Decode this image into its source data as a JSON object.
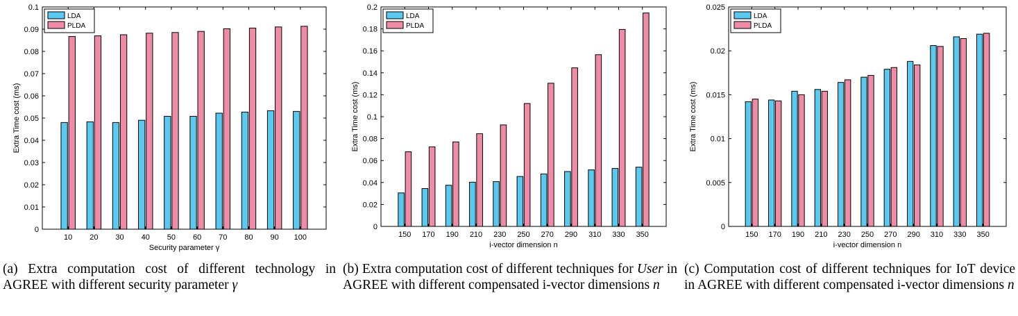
{
  "colors": {
    "lda": "#5BC8EF",
    "plda": "#EE8CA8",
    "axis": "#000000"
  },
  "panels": [
    {
      "id": "a",
      "caption": {
        "tag": "(a)",
        "text": "Extra computation cost of different technology in AGREE with different security parameter ",
        "symbol": "γ"
      }
    },
    {
      "id": "b",
      "caption": {
        "tag": "(b)",
        "before": "Extra computation cost of different techniques for ",
        "italic": "User",
        "after": " in AGREE with different compensated i-vector dimensions ",
        "symbol": "n"
      }
    },
    {
      "id": "c",
      "caption": {
        "tag": "(c)",
        "text": "Computation cost of different techniques for IoT device in AGREE with different compensated i-vector dimensions ",
        "symbol": "n"
      }
    }
  ],
  "chart_data": [
    {
      "type": "bar",
      "categories": [
        "10",
        "20",
        "30",
        "40",
        "50",
        "60",
        "70",
        "80",
        "90",
        "100"
      ],
      "series": [
        {
          "name": "LDA",
          "values": [
            0.048,
            0.0483,
            0.048,
            0.049,
            0.0508,
            0.0508,
            0.0522,
            0.0527,
            0.0533,
            0.053
          ]
        },
        {
          "name": "PLDA",
          "values": [
            0.0867,
            0.087,
            0.0875,
            0.0882,
            0.0885,
            0.089,
            0.0902,
            0.0905,
            0.091,
            0.0913
          ]
        }
      ],
      "xlabel": "Security parameter γ",
      "ylabel": "Extra Time cost (ms)",
      "ylim": [
        0,
        0.1
      ],
      "yticks": [
        "0",
        "0.01",
        "0.02",
        "0.03",
        "0.04",
        "0.05",
        "0.06",
        "0.07",
        "0.08",
        "0.09",
        "0.1"
      ],
      "legend": "top-left",
      "grid": false
    },
    {
      "type": "bar",
      "categories": [
        "150",
        "170",
        "190",
        "210",
        "230",
        "250",
        "270",
        "290",
        "310",
        "330",
        "350"
      ],
      "series": [
        {
          "name": "LDA",
          "values": [
            0.0305,
            0.0345,
            0.0375,
            0.0403,
            0.0408,
            0.0455,
            0.0478,
            0.05,
            0.0515,
            0.0528,
            0.054
          ]
        },
        {
          "name": "PLDA",
          "values": [
            0.068,
            0.0725,
            0.077,
            0.0845,
            0.0925,
            0.112,
            0.1305,
            0.1445,
            0.1565,
            0.1795,
            0.1945
          ]
        }
      ],
      "xlabel": "i-vector dimension n",
      "ylabel": "Extra Time cost (ms)",
      "ylim": [
        0,
        0.2
      ],
      "yticks": [
        "0",
        "0.02",
        "0.04",
        "0.06",
        "0.08",
        "0.1",
        "0.12",
        "0.14",
        "0.16",
        "0.18",
        "0.2"
      ],
      "legend": "top-left",
      "grid": false
    },
    {
      "type": "bar",
      "categories": [
        "150",
        "170",
        "190",
        "210",
        "230",
        "250",
        "270",
        "290",
        "310",
        "330",
        "350"
      ],
      "series": [
        {
          "name": "LDA",
          "values": [
            0.0142,
            0.0144,
            0.0154,
            0.0156,
            0.0164,
            0.017,
            0.0179,
            0.0188,
            0.0206,
            0.0216,
            0.0219
          ]
        },
        {
          "name": "PLDA",
          "values": [
            0.0145,
            0.0143,
            0.015,
            0.0154,
            0.0167,
            0.0172,
            0.0181,
            0.0184,
            0.0205,
            0.0214,
            0.022
          ]
        }
      ],
      "xlabel": "i-vector dimension n",
      "ylabel": "Extra Time cost (ms)",
      "ylim": [
        0,
        0.025
      ],
      "yticks": [
        "0",
        "0.005",
        "0.01",
        "0.015",
        "0.02",
        "0.025"
      ],
      "legend": "top-left",
      "grid": false
    }
  ]
}
